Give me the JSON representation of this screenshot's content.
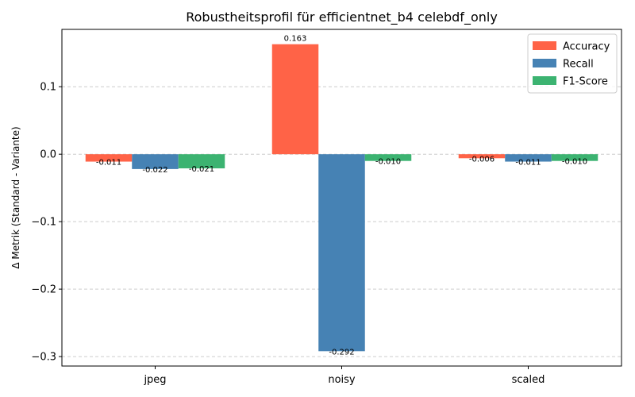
{
  "chart_data": {
    "type": "bar",
    "title": "Robustheitsprofil für efficientnet_b4 celebdf_only",
    "xlabel": "",
    "ylabel": "Δ Metrik (Standard - Variante)",
    "categories": [
      "jpeg",
      "noisy",
      "scaled"
    ],
    "series": [
      {
        "name": "Accuracy",
        "color": "#ff6347",
        "values": [
          -0.011,
          0.163,
          -0.006
        ],
        "labels": [
          "-0.011",
          "0.163",
          "-0.006"
        ]
      },
      {
        "name": "Recall",
        "color": "#4682b4",
        "values": [
          -0.022,
          -0.292,
          -0.011
        ],
        "labels": [
          "-0.022",
          "-0.292",
          "-0.011"
        ]
      },
      {
        "name": "F1-Score",
        "color": "#3cb371",
        "values": [
          -0.021,
          -0.01,
          -0.01
        ],
        "labels": [
          "-0.021",
          "-0.010",
          "-0.010"
        ]
      }
    ],
    "ylim": [
      -0.314,
      0.185
    ],
    "yticks": [
      0.1,
      0.0,
      -0.1,
      -0.2,
      -0.3
    ],
    "ytick_labels": [
      "0.1",
      "0.0",
      "−0.1",
      "−0.2",
      "−0.3"
    ],
    "grid": "y-dashed",
    "legend_position": "top-right"
  }
}
